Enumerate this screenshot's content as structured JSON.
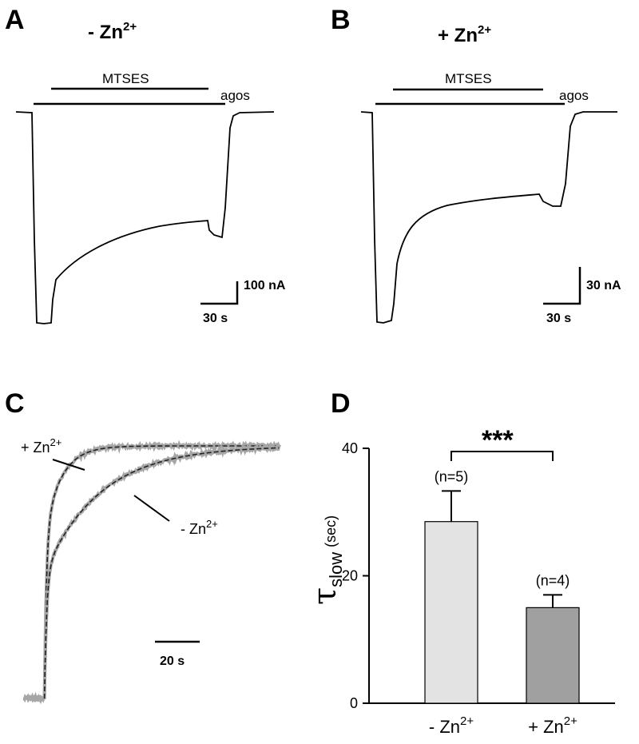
{
  "panels": {
    "A": {
      "letter": "A",
      "title_prefix": "- Zn",
      "title_sup": "2+",
      "bar_label": "MTSES",
      "agonist_label": "agos",
      "scale_y": "100 nA",
      "scale_x": "30 s"
    },
    "B": {
      "letter": "B",
      "title_prefix": "+ Zn",
      "title_sup": "2+",
      "bar_label": "MTSES",
      "agonist_label": "agos",
      "scale_y": "30 nA",
      "scale_x": "30 s"
    },
    "C": {
      "letter": "C",
      "label_plus_prefix": "+ Zn",
      "label_plus_sup": "2+",
      "label_minus_prefix": "- Zn",
      "label_minus_sup": "2+",
      "scale_x": "20 s"
    },
    "D": {
      "letter": "D",
      "significance": "***"
    }
  },
  "chart_data": [
    {
      "panel": "D",
      "type": "bar",
      "categories": [
        "- Zn2+",
        "+ Zn2+"
      ],
      "category_prefix": [
        "- Zn",
        "+ Zn"
      ],
      "category_sup": [
        "2+",
        "2+"
      ],
      "values": [
        28.5,
        15.0
      ],
      "errors": [
        4.8,
        2.0
      ],
      "n_labels": [
        "(n=5)",
        "(n=4)"
      ],
      "colors": [
        "#e3e3e3",
        "#a0a0a0"
      ],
      "ylabel_symbol": "τ",
      "ylabel_sub": "slow",
      "ylabel_unit": "(sec)",
      "ylim": [
        0,
        40
      ],
      "yticks": [
        0,
        20,
        40
      ],
      "ytick_labels": [
        "0",
        "20",
        "40"
      ],
      "significance": "***"
    },
    {
      "panel": "C",
      "type": "line",
      "xlim": [
        0,
        100
      ],
      "ylim": [
        0,
        1
      ],
      "series": [
        {
          "name": "+ Zn2+",
          "raw_color": "#a6a6a6",
          "fit_color": "#222222",
          "t_onset": 8,
          "fast_amplitude": 0.65,
          "tau_fast": 0.8,
          "tau_slow": 6.5
        },
        {
          "name": "- Zn2+",
          "raw_color": "#a6a6a6",
          "fit_color": "#222222",
          "t_onset": 8,
          "fast_amplitude": 0.5,
          "tau_fast": 0.9,
          "tau_slow": 22
        }
      ]
    }
  ]
}
